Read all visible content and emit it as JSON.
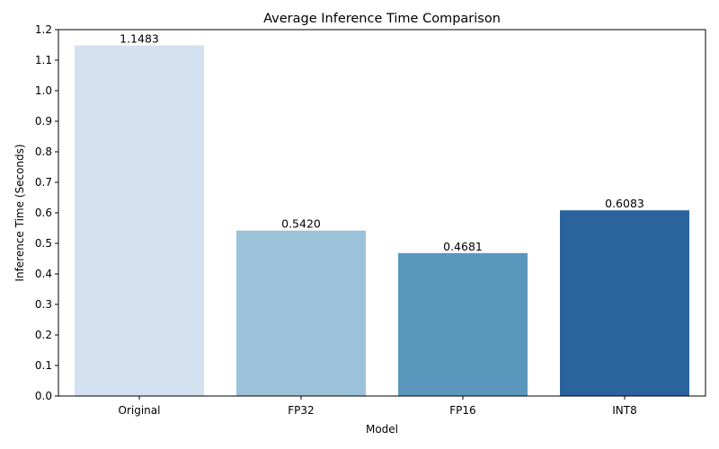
{
  "chart_data": {
    "type": "bar",
    "title": "Average Inference Time Comparison",
    "xlabel": "Model",
    "ylabel": "Inference Time (Seconds)",
    "categories": [
      "Original",
      "FP32",
      "FP16",
      "INT8"
    ],
    "values": [
      1.1483,
      0.542,
      0.4681,
      0.6083
    ],
    "value_labels": [
      "1.1483",
      "0.5420",
      "0.4681",
      "0.6083"
    ],
    "colors": [
      "#d3e1f0",
      "#9bc2d8",
      "#5b96bc",
      "#2b649c"
    ],
    "ylim": [
      0,
      1.2
    ],
    "yticks": [
      0.0,
      0.1,
      0.2,
      0.3,
      0.4,
      0.5,
      0.6,
      0.7,
      0.8,
      0.9,
      1.0,
      1.1,
      1.2
    ],
    "ytick_labels": [
      "0.0",
      "0.1",
      "0.2",
      "0.3",
      "0.4",
      "0.5",
      "0.6",
      "0.7",
      "0.8",
      "0.9",
      "1.0",
      "1.1",
      "1.2"
    ],
    "grid": false,
    "legend": false
  }
}
